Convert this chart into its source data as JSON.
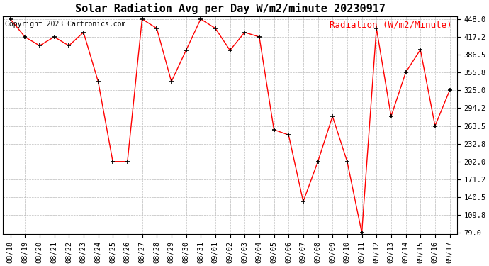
{
  "title": "Solar Radiation Avg per Day W/m2/minute 20230917",
  "copyright": "Copyright 2023 Cartronics.com",
  "legend_label": "Radiation (W/m2/Minute)",
  "dates": [
    "08/18",
    "08/19",
    "08/20",
    "08/21",
    "08/22",
    "08/23",
    "08/24",
    "08/25",
    "08/26",
    "08/27",
    "08/28",
    "08/29",
    "08/30",
    "08/31",
    "09/01",
    "09/02",
    "09/03",
    "09/04",
    "09/05",
    "09/06",
    "09/07",
    "09/08",
    "09/09",
    "09/10",
    "09/11",
    "09/12",
    "09/13",
    "09/14",
    "09/15",
    "09/16",
    "09/17"
  ],
  "values": [
    448.0,
    417.2,
    402.0,
    417.2,
    402.0,
    425.0,
    340.0,
    202.0,
    202.0,
    448.0,
    432.0,
    340.0,
    394.0,
    448.0,
    432.0,
    394.0,
    425.0,
    417.2,
    257.0,
    248.0,
    133.0,
    202.0,
    280.0,
    202.0,
    79.0,
    432.0,
    280.0,
    356.0,
    395.0,
    263.5,
    325.0
  ],
  "line_color": "red",
  "marker_color": "black",
  "bg_color": "#ffffff",
  "plot_bg_color": "#ffffff",
  "grid_color": "#bbbbbb",
  "ylim_min": 79.0,
  "ylim_max": 448.0,
  "yticks": [
    79.0,
    109.8,
    140.5,
    171.2,
    202.0,
    232.8,
    263.5,
    294.2,
    325.0,
    355.8,
    386.5,
    417.2,
    448.0
  ],
  "title_fontsize": 11,
  "copyright_fontsize": 7,
  "legend_fontsize": 9,
  "tick_fontsize": 7.5
}
